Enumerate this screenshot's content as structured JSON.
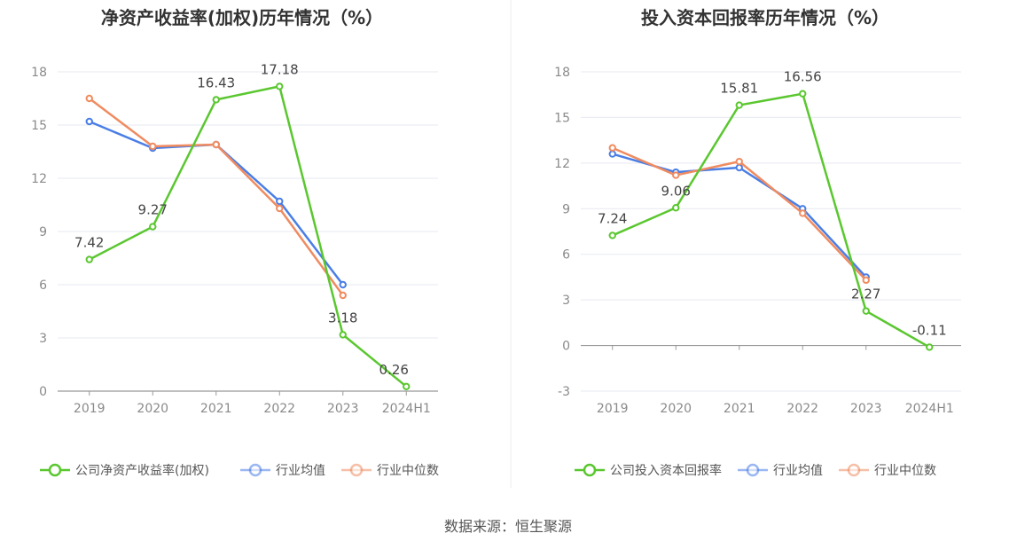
{
  "chart_data": [
    {
      "type": "line",
      "title": "净资产收益率(加权)历年情况（%）",
      "categories": [
        "2019",
        "2020",
        "2021",
        "2022",
        "2023",
        "2024H1"
      ],
      "ylim": [
        0,
        18
      ],
      "yticks": [
        0,
        3,
        6,
        9,
        12,
        15,
        18
      ],
      "grid": true,
      "legend_position": "bottom",
      "series": [
        {
          "name": "公司净资产收益率(加权)",
          "color": "#5ac72f",
          "values": [
            7.42,
            9.27,
            16.43,
            17.18,
            3.18,
            0.26
          ],
          "labels": [
            "7.42",
            "9.27",
            "16.43",
            "17.18",
            "3.18",
            "0.26"
          ]
        },
        {
          "name": "行业均值",
          "color": "#4a7ee6",
          "values": [
            15.2,
            13.7,
            13.9,
            10.7,
            6.0,
            null
          ]
        },
        {
          "name": "行业中位数",
          "color": "#f08b60",
          "values": [
            16.5,
            13.8,
            13.9,
            10.3,
            5.4,
            null
          ]
        }
      ]
    },
    {
      "type": "line",
      "title": "投入资本回报率历年情况（%）",
      "categories": [
        "2019",
        "2020",
        "2021",
        "2022",
        "2023",
        "2024H1"
      ],
      "ylim": [
        -3,
        18
      ],
      "yticks": [
        -3,
        0,
        3,
        6,
        9,
        12,
        15,
        18
      ],
      "grid": true,
      "legend_position": "bottom",
      "series": [
        {
          "name": "公司投入资本回报率",
          "color": "#5ac72f",
          "values": [
            7.24,
            9.06,
            15.81,
            16.56,
            2.27,
            -0.11
          ],
          "labels": [
            "7.24",
            "9.06",
            "15.81",
            "16.56",
            "2.27",
            "-0.11"
          ]
        },
        {
          "name": "行业均值",
          "color": "#4a7ee6",
          "values": [
            12.6,
            11.4,
            11.7,
            9.0,
            4.5,
            null
          ]
        },
        {
          "name": "行业中位数",
          "color": "#f08b60",
          "values": [
            13.0,
            11.2,
            12.1,
            8.7,
            4.3,
            null
          ]
        }
      ]
    }
  ],
  "source": "数据来源：恒生聚源"
}
